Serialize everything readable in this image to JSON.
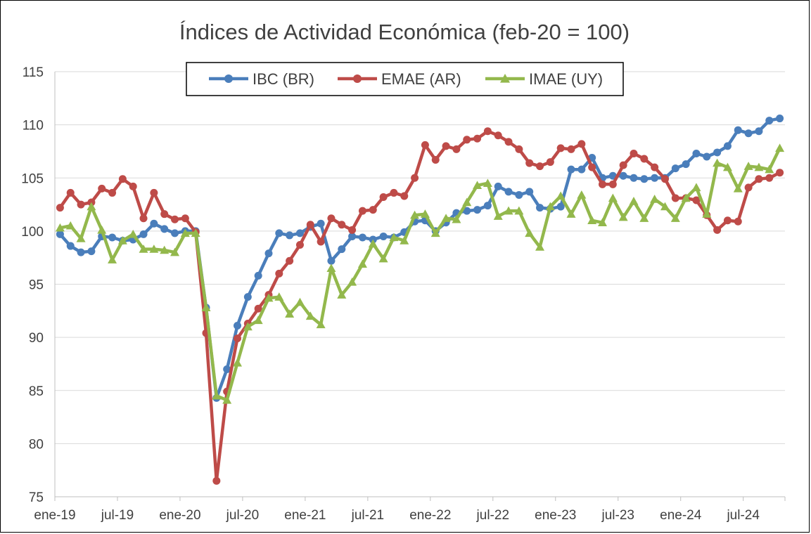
{
  "chart_data": {
    "type": "line",
    "title": "Índices de Actividad Económica (feb-20 = 100)",
    "xlabel": "",
    "ylabel": "",
    "ylim": [
      75,
      115
    ],
    "yticks": [
      "75",
      "80",
      "85",
      "90",
      "95",
      "100",
      "105",
      "110",
      "115"
    ],
    "xtick_labels": [
      "ene-19",
      "jul-19",
      "ene-20",
      "jul-20",
      "ene-21",
      "jul-21",
      "ene-22",
      "jul-22",
      "ene-23",
      "jul-23",
      "ene-24",
      "jul-24"
    ],
    "grid": "horizontal",
    "legend_position": "top-center",
    "series": [
      {
        "name": "IBC (BR)",
        "color": "#4a7ebb",
        "marker": "circle",
        "values": [
          99.7,
          98.6,
          98.0,
          98.1,
          99.5,
          99.4,
          99.1,
          99.2,
          99.7,
          100.7,
          100.2,
          99.8,
          100.0,
          100.0,
          92.8,
          84.3,
          87.0,
          91.1,
          93.8,
          95.8,
          97.9,
          99.8,
          99.6,
          99.8,
          100.4,
          100.7,
          97.2,
          98.3,
          99.5,
          99.4,
          99.2,
          99.5,
          99.4,
          99.9,
          100.9,
          101.0,
          100.0,
          100.8,
          101.7,
          101.9,
          102.0,
          102.4,
          104.2,
          103.7,
          103.4,
          103.7,
          102.2,
          102.1,
          102.3,
          105.8,
          105.8,
          106.9,
          105.0,
          105.2,
          105.2,
          105.0,
          104.9,
          105.0,
          105.0,
          105.9,
          106.3,
          107.3,
          107.0,
          107.4,
          108.0,
          109.5,
          109.2,
          109.4,
          110.4,
          110.6
        ]
      },
      {
        "name": "EMAE (AR)",
        "color": "#be4b48",
        "marker": "circle",
        "values": [
          102.2,
          103.6,
          102.5,
          102.7,
          104.0,
          103.6,
          104.9,
          104.2,
          101.2,
          103.6,
          101.6,
          101.1,
          101.2,
          99.9,
          90.4,
          76.5,
          84.9,
          89.9,
          91.3,
          92.7,
          94.0,
          96.0,
          97.2,
          98.7,
          100.6,
          99.0,
          101.2,
          100.6,
          100.1,
          101.9,
          102.0,
          103.2,
          103.6,
          103.3,
          105.0,
          108.1,
          106.7,
          108.0,
          107.7,
          108.6,
          108.7,
          109.4,
          109.0,
          108.4,
          107.7,
          106.4,
          106.1,
          106.5,
          107.8,
          107.7,
          108.2,
          106.0,
          104.4,
          104.4,
          106.2,
          107.3,
          106.8,
          106.0,
          104.9,
          103.1,
          103.1,
          102.9,
          101.5,
          100.1,
          101.0,
          100.9,
          104.1,
          104.9,
          105.0,
          105.5
        ]
      },
      {
        "name": "IMAE (UY)",
        "color": "#93b84c",
        "marker": "triangle",
        "values": [
          100.3,
          100.5,
          99.3,
          102.3,
          100.1,
          97.3,
          99.1,
          99.7,
          98.3,
          98.3,
          98.2,
          98.0,
          99.8,
          99.8,
          92.8,
          84.5,
          84.1,
          87.6,
          91.0,
          91.6,
          93.7,
          93.8,
          92.2,
          93.3,
          92.0,
          91.2,
          96.5,
          94.0,
          95.2,
          96.9,
          98.8,
          97.4,
          99.4,
          99.1,
          101.5,
          101.6,
          99.8,
          101.2,
          101.1,
          102.7,
          104.3,
          104.5,
          101.4,
          101.9,
          101.9,
          99.8,
          98.5,
          102.3,
          103.3,
          101.6,
          103.4,
          101.0,
          100.8,
          103.1,
          101.3,
          102.8,
          101.2,
          103.0,
          102.3,
          101.2,
          103.1,
          104.1,
          101.6,
          106.4,
          106.0,
          104.0,
          106.1,
          106.0,
          105.8,
          107.8
        ]
      }
    ]
  }
}
